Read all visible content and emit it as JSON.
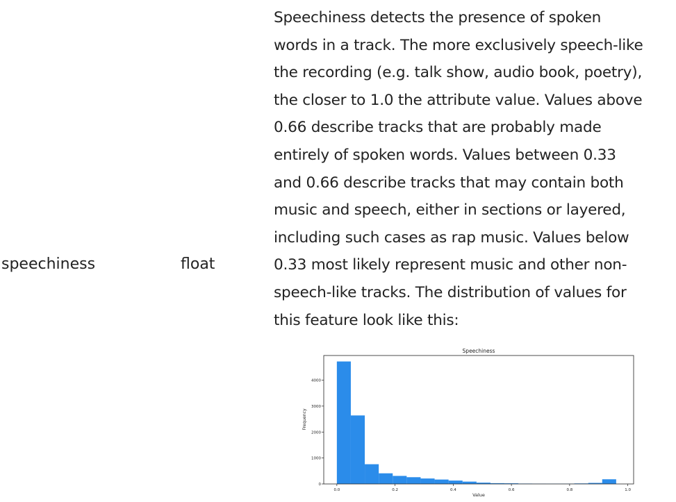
{
  "row": {
    "name": "speechiness",
    "type": "float",
    "description_lines": [
      "Speechiness detects the presence of spoken",
      "words in a track. The more exclusively speech-like",
      "the recording (e.g. talk show, audio book, poetry),",
      "the closer to 1.0 the attribute value. Values above",
      "0.66 describe tracks that are probably made",
      "entirely of spoken words. Values between 0.33",
      "and 0.66 describe tracks that may contain both",
      "music and speech, either in sections or layered,",
      "including such cases as rap music. Values below",
      "0.33 most likely represent music and other non-",
      "speech-like tracks. The distribution of values for",
      "this feature look like this:"
    ]
  },
  "chart_data": {
    "type": "bar",
    "title": "Speechiness",
    "xlabel": "Value",
    "ylabel": "Frequency",
    "bar_color": "#2b8cea",
    "xlim": [
      -0.045,
      1.02
    ],
    "ylim": [
      0,
      4950
    ],
    "x_ticks": [
      "0.0",
      "0.2",
      "0.4",
      "0.6",
      "0.8",
      "1.0"
    ],
    "y_ticks": [
      "0",
      "1000",
      "2000",
      "3000",
      "4000"
    ],
    "bin_width": 0.048,
    "bins": [
      {
        "start": 0.0,
        "value": 4720
      },
      {
        "start": 0.048,
        "value": 2640
      },
      {
        "start": 0.096,
        "value": 760
      },
      {
        "start": 0.144,
        "value": 410
      },
      {
        "start": 0.192,
        "value": 310
      },
      {
        "start": 0.24,
        "value": 260
      },
      {
        "start": 0.288,
        "value": 210
      },
      {
        "start": 0.336,
        "value": 170
      },
      {
        "start": 0.384,
        "value": 130
      },
      {
        "start": 0.432,
        "value": 90
      },
      {
        "start": 0.48,
        "value": 50
      },
      {
        "start": 0.528,
        "value": 30
      },
      {
        "start": 0.576,
        "value": 25
      },
      {
        "start": 0.624,
        "value": 15
      },
      {
        "start": 0.672,
        "value": 12
      },
      {
        "start": 0.72,
        "value": 10
      },
      {
        "start": 0.768,
        "value": 10
      },
      {
        "start": 0.816,
        "value": 20
      },
      {
        "start": 0.864,
        "value": 40
      },
      {
        "start": 0.912,
        "value": 180
      }
    ]
  }
}
